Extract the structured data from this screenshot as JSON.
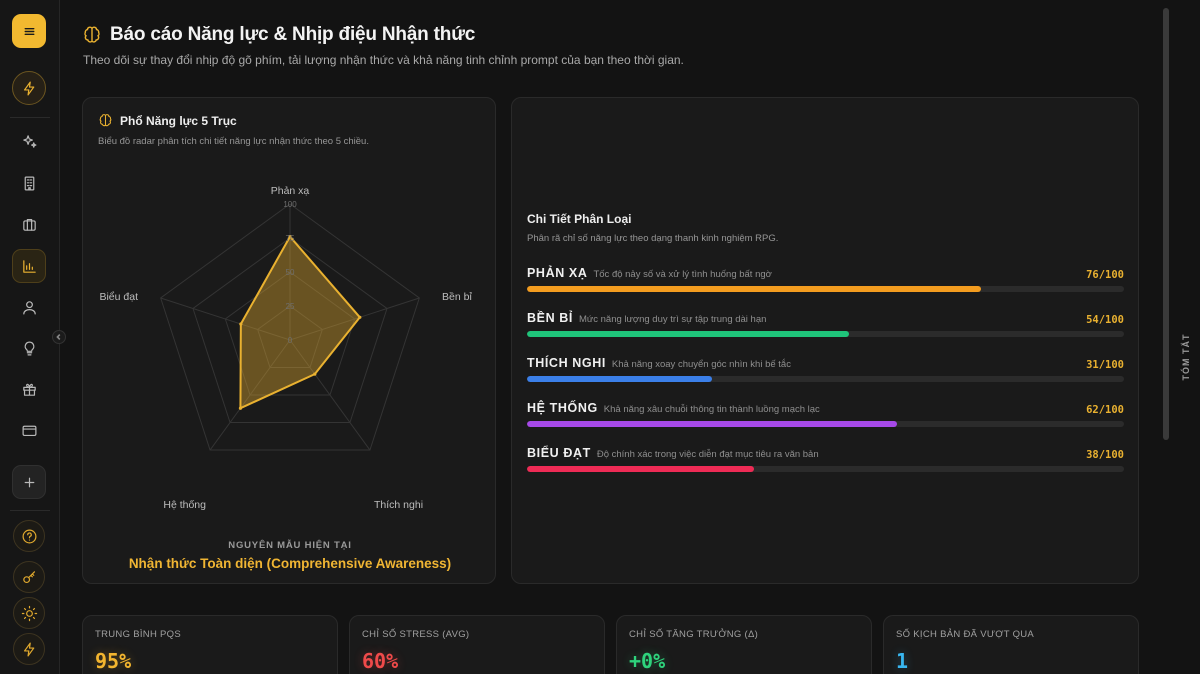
{
  "header": {
    "title": "Báo cáo Năng lực & Nhịp điệu Nhận thức",
    "subtitle": "Theo dõi sự thay đổi nhịp độ gõ phím, tải lượng nhận thức và khả năng tinh chỉnh prompt của bạn theo thời gian."
  },
  "radar": {
    "title": "Phổ Năng lực 5 Trục",
    "subtitle": "Biểu đồ radar phân tích chi tiết năng lực nhận thức theo 5 chiều.",
    "ticks": [
      "0",
      "25",
      "50",
      "75",
      "100"
    ],
    "archetype_label": "NGUYÊN MẪU HIỆN TẠI",
    "archetype_value": "Nhận thức Toàn diện (Comprehensive Awareness)"
  },
  "chart_data": {
    "type": "radar",
    "categories": [
      "Phản xạ",
      "Bền bỉ",
      "Thích nghi",
      "Hệ thống",
      "Biểu đạt"
    ],
    "values": [
      76,
      54,
      31,
      62,
      38
    ],
    "range": [
      0,
      100
    ],
    "color": "#e9b130"
  },
  "details": {
    "title": "Chi Tiết Phân Loại",
    "subtitle": "Phân rã chỉ số năng lực theo dạng thanh kinh nghiệm RPG.",
    "stats": [
      {
        "name": "PHẢN XẠ",
        "desc": "Tốc độ nảy số và xử lý tình huống bất ngờ",
        "score": 76,
        "value_text": "76/100",
        "color": "#f39c1f"
      },
      {
        "name": "BỀN BỈ",
        "desc": "Mức năng lượng duy trì sự tập trung dài hạn",
        "score": 54,
        "value_text": "54/100",
        "color": "#1fc47a"
      },
      {
        "name": "THÍCH NGHI",
        "desc": "Khả năng xoay chuyển góc nhìn khi bế tắc",
        "score": 31,
        "value_text": "31/100",
        "color": "#3b7fe8"
      },
      {
        "name": "HỆ THỐNG",
        "desc": "Khả năng xâu chuỗi thông tin thành luồng mạch lạc",
        "score": 62,
        "value_text": "62/100",
        "color": "#a649e8"
      },
      {
        "name": "BIỂU ĐẠT",
        "desc": "Độ chính xác trong việc diễn đạt mục tiêu ra văn bản",
        "score": 38,
        "value_text": "38/100",
        "color": "#ee2b55"
      }
    ]
  },
  "side_panel_label": "TÓM TẮT",
  "metrics": [
    {
      "label": "TRUNG BÌNH PQS",
      "value": "95%",
      "color": "#f3b52f"
    },
    {
      "label": "CHỈ SỐ STRESS (AVG)",
      "value": "60%",
      "color": "#ef4a4a"
    },
    {
      "label": "CHỈ SỐ TĂNG TRƯỞNG (Δ)",
      "value": "+0%",
      "color": "#2ed37c"
    },
    {
      "label": "SỐ KỊCH BẢN ĐÃ VƯỢT QUA",
      "value": "1",
      "color": "#38b6f0"
    }
  ]
}
